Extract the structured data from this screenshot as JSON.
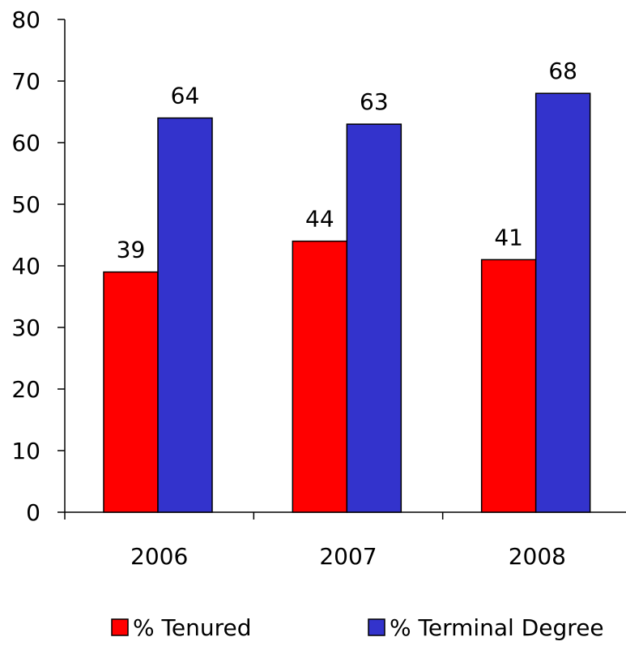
{
  "chart_data": {
    "type": "bar",
    "categories": [
      "2006",
      "2007",
      "2008"
    ],
    "series": [
      {
        "name": "% Tenured",
        "values": [
          39,
          44,
          41
        ],
        "color": "#ff0000"
      },
      {
        "name": "% Terminal Degree",
        "values": [
          64,
          63,
          68
        ],
        "color": "#3333cc"
      }
    ],
    "ylim": [
      0,
      80
    ],
    "yticks": [
      0,
      10,
      20,
      30,
      40,
      50,
      60,
      70,
      80
    ],
    "data_labels": true,
    "grid": false,
    "legend_position": "bottom"
  }
}
